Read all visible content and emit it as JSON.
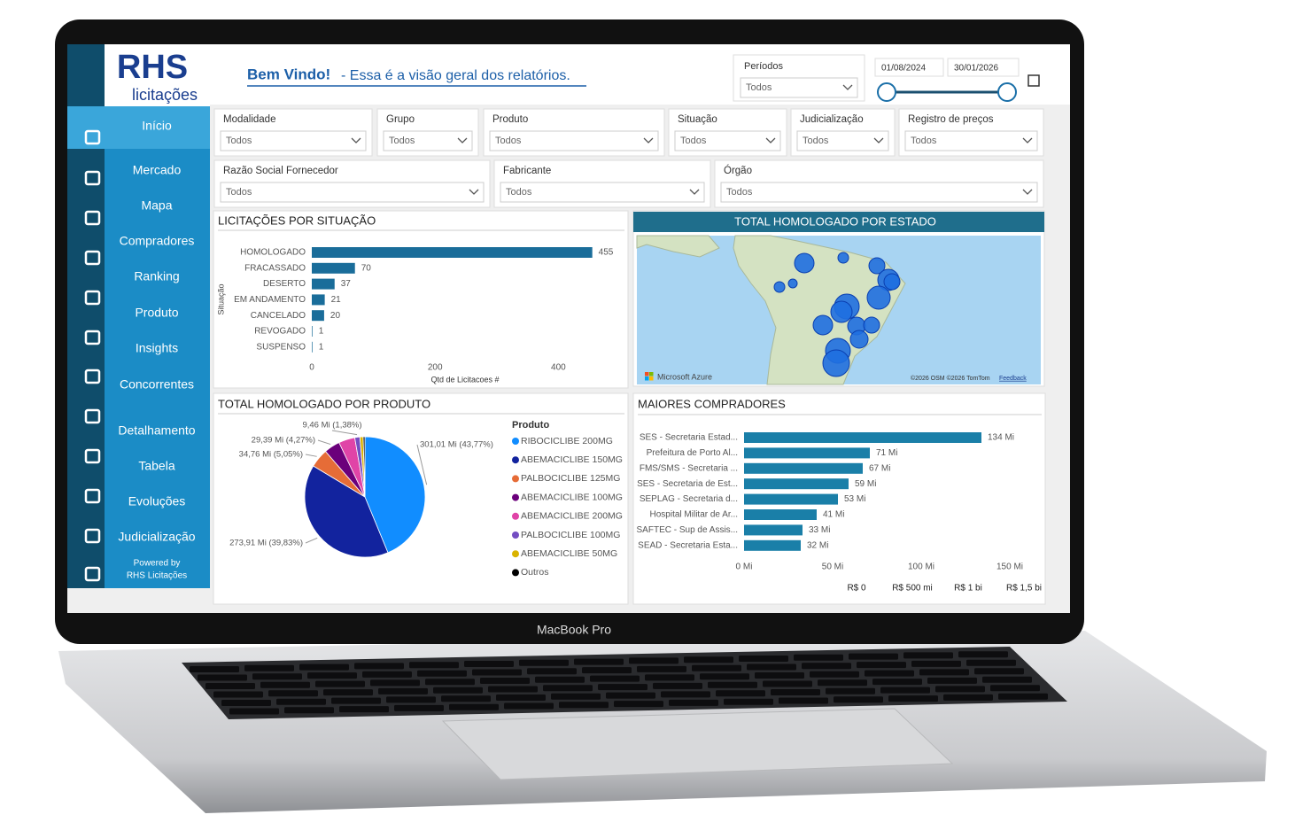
{
  "logo": {
    "brand": "RHS",
    "sub": "licitações"
  },
  "header": {
    "greeting": "Bem Vindo!",
    "subtitle": "- Essa é a visão geral dos relatórios."
  },
  "period": {
    "label": "Períodos",
    "value": "Todos",
    "start": "01/08/2024",
    "end": "30/01/2026"
  },
  "nav": [
    "Início",
    "Mercado",
    "Mapa",
    "Compradores",
    "Ranking",
    "Produto",
    "Insights",
    "Concorrentes",
    "Detalhamento",
    "Tabela",
    "Evoluções",
    "Judicialização"
  ],
  "powered_by": [
    "Powered by",
    "RHS Licitações"
  ],
  "filters": [
    {
      "label": "Modalidade",
      "value": "Todos"
    },
    {
      "label": "Grupo",
      "value": "Todos"
    },
    {
      "label": "Produto",
      "value": "Todos"
    },
    {
      "label": "Situação",
      "value": "Todos"
    },
    {
      "label": "Judicialização",
      "value": "Todos"
    },
    {
      "label": "Registro de preços",
      "value": "Todos"
    },
    {
      "label": "Razão Social Fornecedor",
      "value": "Todos"
    },
    {
      "label": "Fabricante",
      "value": "Todos"
    },
    {
      "label": "Órgão",
      "value": "Todos"
    }
  ],
  "chart_data": [
    {
      "type": "bar",
      "title": "LICITAÇÕES POR SITUAÇÃO",
      "categories": [
        "HOMOLOGADO",
        "FRACASSADO",
        "DESERTO",
        "EM ANDAMENTO",
        "CANCELADO",
        "REVOGADO",
        "SUSPENSO"
      ],
      "values": [
        455,
        70,
        37,
        21,
        20,
        1,
        1
      ],
      "color": "#1a6d9a",
      "xlim": [
        0,
        500
      ],
      "xticks": [
        0,
        200,
        400
      ],
      "xlabel": "Qtd de Licitacoes #",
      "ylabel": "Situação"
    },
    {
      "type": "map",
      "title": "TOTAL HOMOLOGADO POR ESTADO",
      "attribution": "Microsoft Azure",
      "credits": "©2026 OSM ©2026 TomTom",
      "feedback": "Feedback"
    },
    {
      "type": "pie",
      "title": "TOTAL HOMOLOGADO POR PRODUTO",
      "legend_title": "Produto",
      "categories": [
        "RIBOCICLIBE 200MG",
        "ABEMACICLIBE 150MG",
        "PALBOCICLIBE 125MG",
        "ABEMACICLIBE 100MG",
        "ABEMACICLIBE 200MG",
        "PALBOCICLIBE 100MG",
        "ABEMACICLIBE 50MG",
        "Outros"
      ],
      "values": [
        301.01,
        273.91,
        34.76,
        29.39,
        30,
        9.46,
        6,
        3.2
      ],
      "value_labels": [
        "301,01 Mi (43,77%)",
        "273,91 Mi (39,83%)",
        "34,76 Mi (5,05%)",
        "29,39 Mi (4,27%)",
        null,
        "9,46 Mi (1,38%)",
        null,
        null
      ],
      "colors": [
        "#118dff",
        "#12239e",
        "#e66c37",
        "#6b007b",
        "#e044a7",
        "#744ec2",
        "#d9b300",
        "#000000"
      ]
    },
    {
      "type": "bar",
      "title": "MAIORES COMPRADORES",
      "categories": [
        "SES - Secretaria Estad...",
        "Prefeitura de Porto Al...",
        "FMS/SMS - Secretaria ...",
        "SES - Secretaria de Est...",
        "SEPLAG - Secretaria d...",
        "Hospital Militar de Ar...",
        "SAFTEC - Sup de Assis...",
        "SEAD - Secretaria Esta..."
      ],
      "values": [
        134,
        71,
        67,
        59,
        53,
        41,
        33,
        32
      ],
      "value_labels": [
        "134 Mi",
        "71 Mi",
        "67 Mi",
        "59 Mi",
        "53 Mi",
        "41 Mi",
        "33 Mi",
        "32 Mi"
      ],
      "color": "#1a7fa8",
      "xlim": [
        0,
        165
      ],
      "xticks": [
        {
          "value": 0,
          "label": "0 Mi"
        },
        {
          "value": 50,
          "label": "50 Mi"
        },
        {
          "value": 100,
          "label": "100 Mi"
        },
        {
          "value": 150,
          "label": "150 Mi"
        }
      ],
      "range_lim": [
        0,
        1500
      ],
      "range_ticks": [
        {
          "value": 0,
          "label": "R$ 0"
        },
        {
          "value": 500,
          "label": "R$ 500 mi"
        },
        {
          "value": 1000,
          "label": "R$ 1 bi"
        },
        {
          "value": 1500,
          "label": "R$ 1,5 bi"
        }
      ]
    }
  ],
  "device_label": "MacBook Pro"
}
